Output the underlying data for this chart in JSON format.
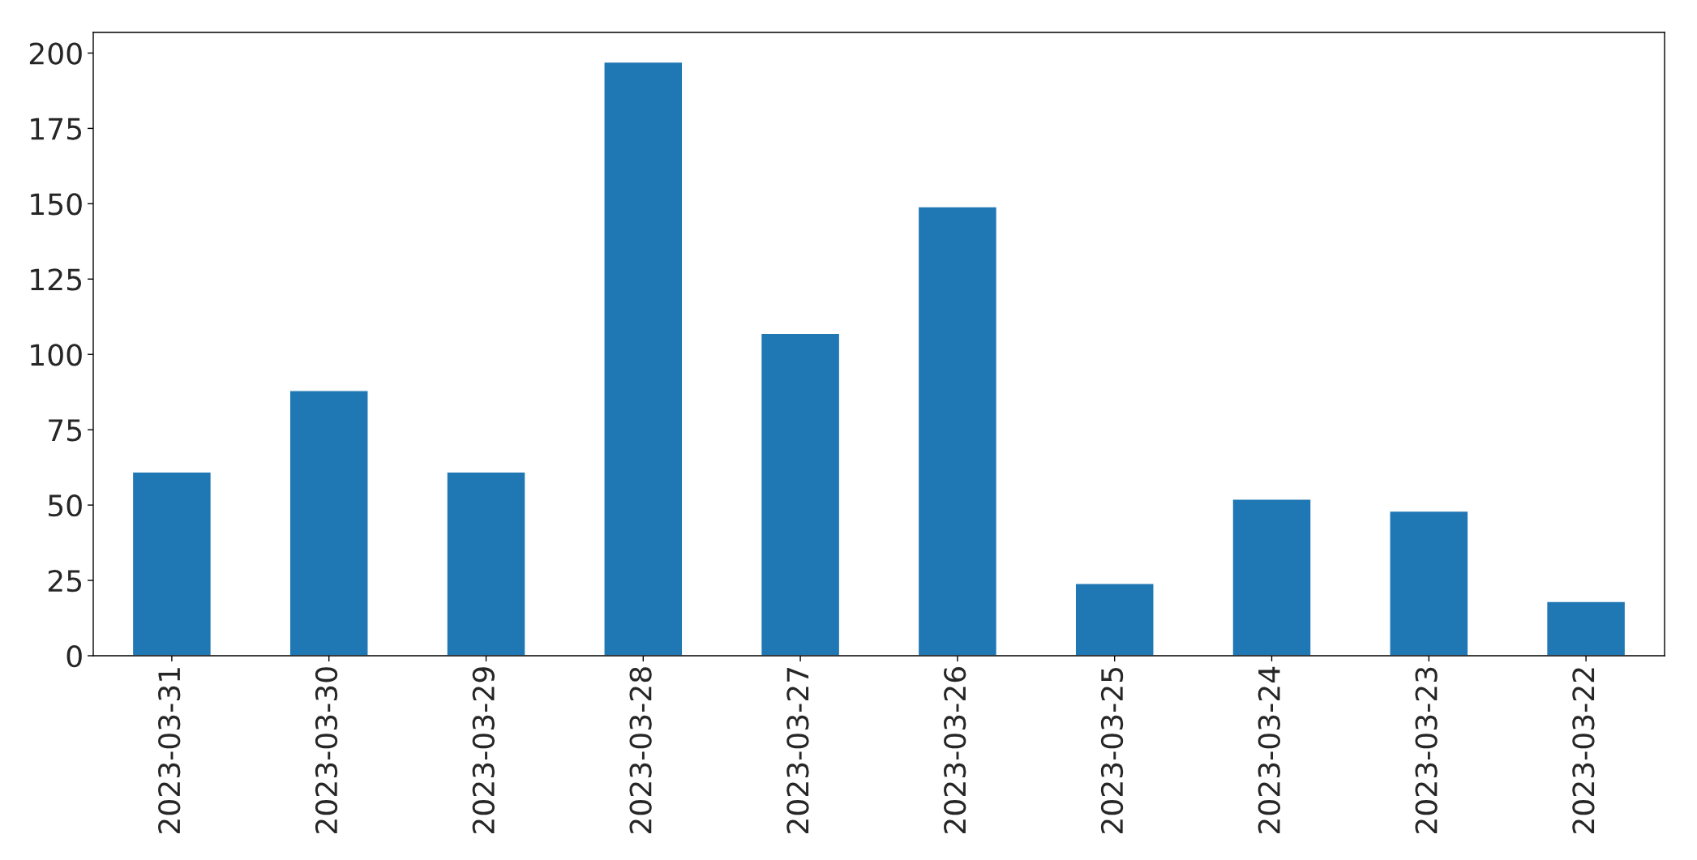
{
  "chart_data": {
    "type": "bar",
    "categories": [
      "2023-03-31",
      "2023-03-30",
      "2023-03-29",
      "2023-03-28",
      "2023-03-27",
      "2023-03-26",
      "2023-03-25",
      "2023-03-24",
      "2023-03-23",
      "2023-03-22"
    ],
    "values": [
      61,
      88,
      61,
      197,
      107,
      149,
      24,
      52,
      48,
      18
    ],
    "color": "#1f77b4",
    "ylim": [
      0,
      206.85
    ],
    "yticks": [
      0,
      25,
      50,
      75,
      100,
      125,
      150,
      175,
      200
    ],
    "grid": false
  }
}
